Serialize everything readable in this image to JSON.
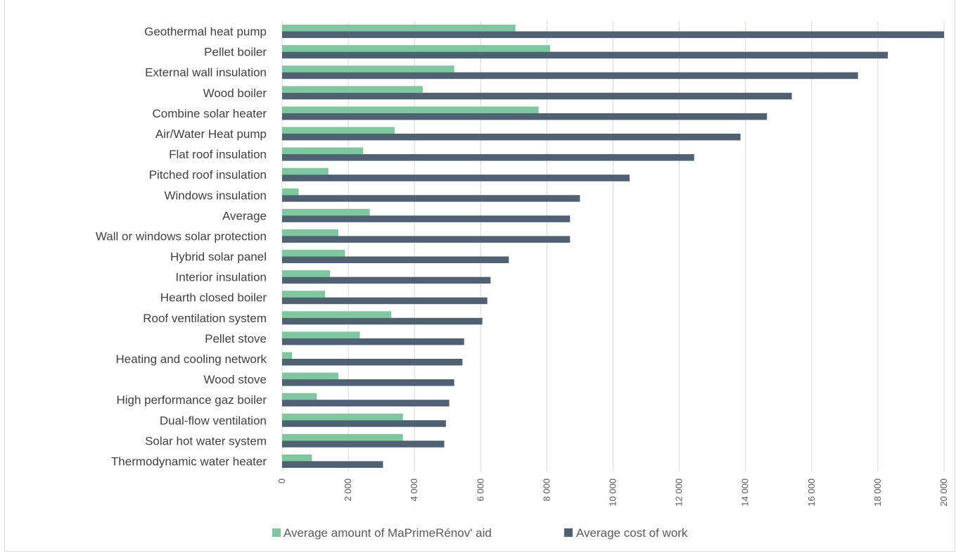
{
  "chart_data": {
    "type": "bar",
    "orientation": "horizontal",
    "title": "",
    "xlabel": "",
    "ylabel": "",
    "xlim": [
      0,
      20000
    ],
    "x_ticks": [
      "0",
      "2 000",
      "4 000",
      "6 000",
      "8 000",
      "10 000",
      "12 000",
      "14 000",
      "16 000",
      "18 000",
      "20 000"
    ],
    "grid": true,
    "legend_position": "bottom",
    "categories": [
      "Geothermal heat pump",
      "Pellet boiler",
      "External wall insulation",
      "Wood boiler",
      "Combine solar heater",
      "Air/Water Heat pump",
      "Flat roof insulation",
      "Pitched roof insulation",
      "Windows insulation",
      "Average",
      "Wall or windows solar protection",
      "Hybrid solar panel",
      "Interior insulation",
      "Hearth closed boiler",
      "Roof ventilation system",
      "Pellet stove",
      "Heating and cooling network",
      "Wood stove",
      "High performance gaz boiler",
      "Dual-flow ventilation",
      "Solar hot water system",
      "Thermodynamic water heater"
    ],
    "series": [
      {
        "name": "Average amount of  MaPrimeRénov' aid",
        "color": "#7ec8a0",
        "values": [
          7050,
          8100,
          5200,
          4250,
          7750,
          3400,
          2450,
          1400,
          500,
          2650,
          1700,
          1900,
          1450,
          1300,
          3300,
          2350,
          300,
          1700,
          1050,
          3650,
          3650,
          900
        ]
      },
      {
        "name": "Average cost of work",
        "color": "#4f6172",
        "values": [
          20000,
          18300,
          17400,
          15400,
          14650,
          13850,
          12450,
          10500,
          9000,
          8700,
          8700,
          6850,
          6300,
          6200,
          6050,
          5500,
          5450,
          5200,
          5050,
          4950,
          4900,
          3050
        ]
      }
    ]
  }
}
